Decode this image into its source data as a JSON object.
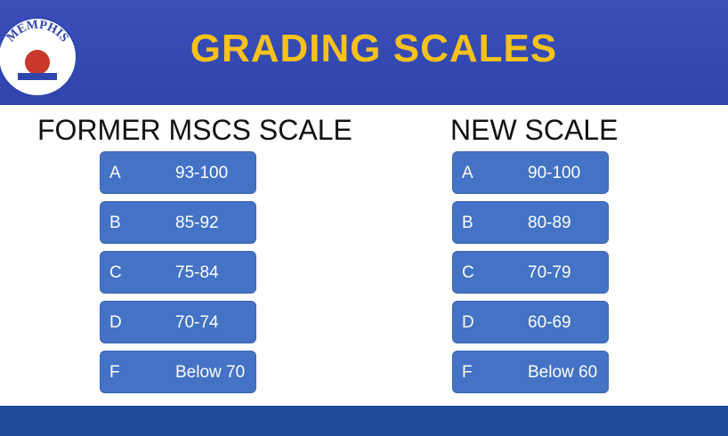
{
  "header": {
    "title": "GRADING SCALES",
    "logo_text": "MEMPHIS"
  },
  "former": {
    "heading": "FORMER MSCS SCALE",
    "rows": [
      {
        "grade": "A",
        "range": "93-100"
      },
      {
        "grade": "B",
        "range": "85-92"
      },
      {
        "grade": "C",
        "range": "75-84"
      },
      {
        "grade": "D",
        "range": "70-74"
      },
      {
        "grade": "F",
        "range": "Below 70"
      }
    ]
  },
  "new": {
    "heading": "NEW SCALE",
    "rows": [
      {
        "grade": "A",
        "range": "90-100"
      },
      {
        "grade": "B",
        "range": "80-89"
      },
      {
        "grade": "C",
        "range": "70-79"
      },
      {
        "grade": "D",
        "range": "60-69"
      },
      {
        "grade": "F",
        "range": "Below 60"
      }
    ]
  }
}
